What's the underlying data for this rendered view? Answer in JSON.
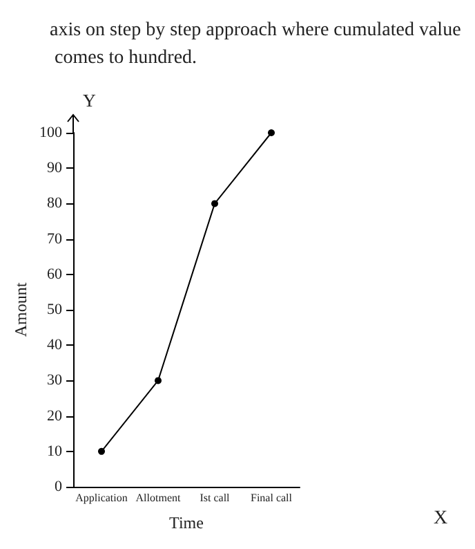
{
  "chart_data": {
    "type": "line",
    "categories": [
      "Application",
      "Allotment",
      "Ist call",
      "Final call"
    ],
    "values": [
      10,
      30,
      80,
      100
    ],
    "color": "#000000",
    "marker": "circle",
    "line_style": "solid",
    "xlabel": "Time",
    "ylabel": "Amount",
    "ylim": [
      0,
      100
    ],
    "yticks": [
      0,
      10,
      20,
      30,
      40,
      50,
      60,
      70,
      80,
      90,
      100
    ],
    "grid": false,
    "annotations": [
      "axis on step by step approach where cumulated value comes to hundred.",
      "Y",
      "X"
    ]
  }
}
